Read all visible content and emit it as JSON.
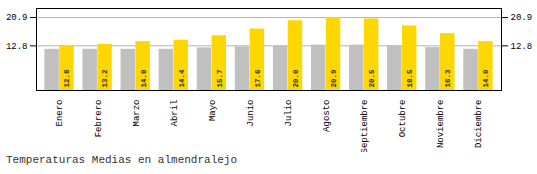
{
  "chart_data": {
    "type": "bar",
    "title": "Temperaturas Medias en almendralejo",
    "categories": [
      "Enero",
      "Febrero",
      "Marzo",
      "Abril",
      "Mayo",
      "Junio",
      "Julio",
      "Agosto",
      "Septiembre",
      "Octubre",
      "Noviembre",
      "Diciembre"
    ],
    "series": [
      {
        "color": "#C0C0C0",
        "values": [
          11.8,
          11.8,
          11.8,
          11.8,
          12.2,
          12.5,
          12.8,
          13.0,
          13.0,
          12.8,
          12.3,
          11.8
        ]
      },
      {
        "color": "#FFD700",
        "values": [
          12.8,
          13.2,
          14.0,
          14.4,
          15.7,
          17.6,
          20.0,
          20.9,
          20.5,
          18.5,
          16.3,
          14.0
        ],
        "value_labels": [
          "12.8",
          "13.2",
          "14.0",
          "14.4",
          "15.7",
          "17.6",
          "20.0",
          "20.9",
          "20.5",
          "18.5",
          "16.3",
          "14.0"
        ]
      }
    ],
    "ylim": [
      0,
      23.5
    ],
    "yticks": [
      12.8,
      20.9
    ],
    "y2lim": [
      0,
      23.5
    ],
    "y2ticks": [
      12.8,
      20.9
    ],
    "grid": true,
    "data_labels": true
  }
}
